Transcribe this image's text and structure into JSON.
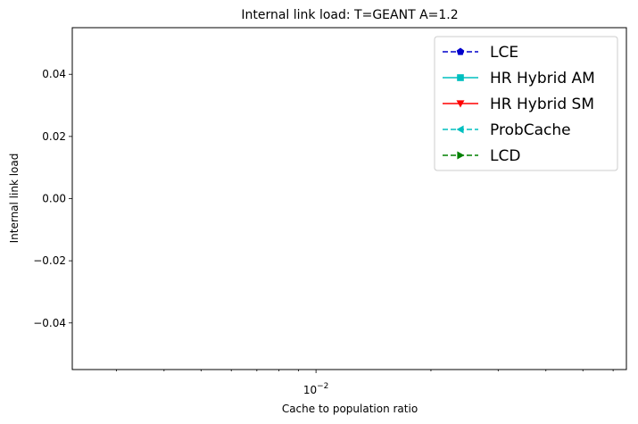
{
  "chart_data": {
    "type": "line",
    "title": "Internal link load: T=GEANT A=1.2",
    "xlabel": "Cache to population ratio",
    "ylabel": "Internal link load",
    "xscale": "log",
    "xlim": [
      0.0023,
      0.065
    ],
    "ylim": [
      -0.055,
      0.055
    ],
    "x_major_ticks": [
      {
        "value": 0.01,
        "base": "10",
        "exponent": "−2"
      }
    ],
    "x_minor_ticks": [
      0.003,
      0.004,
      0.005,
      0.006,
      0.007,
      0.008,
      0.009,
      0.02,
      0.03,
      0.04,
      0.05,
      0.06
    ],
    "y_ticks": [
      {
        "value": 0.04,
        "label": "0.04"
      },
      {
        "value": 0.02,
        "label": "0.02"
      },
      {
        "value": 0.0,
        "label": "0.00"
      },
      {
        "value": -0.02,
        "label": "−0.02"
      },
      {
        "value": -0.04,
        "label": "−0.04"
      }
    ],
    "grid": false,
    "legend_position": "top-right",
    "series": [
      {
        "name": "LCE",
        "color": "#0000cc",
        "linestyle": "dashed",
        "marker": "pentagon",
        "values": []
      },
      {
        "name": "HR Hybrid AM",
        "color": "#00bfbf",
        "linestyle": "solid",
        "marker": "square",
        "values": []
      },
      {
        "name": "HR Hybrid SM",
        "color": "#ff0000",
        "linestyle": "solid",
        "marker": "triangle-down",
        "values": []
      },
      {
        "name": "ProbCache",
        "color": "#00bfbf",
        "linestyle": "dashed",
        "marker": "triangle-left",
        "values": []
      },
      {
        "name": "LCD",
        "color": "#008000",
        "linestyle": "dashed",
        "marker": "triangle-right",
        "values": []
      }
    ]
  }
}
